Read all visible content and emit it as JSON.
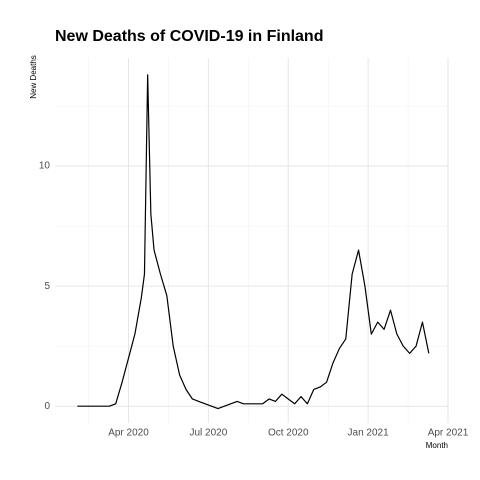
{
  "chart_data": {
    "type": "line",
    "title": "New Deaths of COVID-19 in Finland",
    "y_label": "New Deaths",
    "x_label": "Month",
    "xlim": [
      2020.02,
      2021.25
    ],
    "ylim": [
      -0.7,
      14.5
    ],
    "xticks": [
      {
        "value": 2020.25,
        "label": "Apr 2020"
      },
      {
        "value": 2020.5,
        "label": "Jul 2020"
      },
      {
        "value": 2020.75,
        "label": "Oct 2020"
      },
      {
        "value": 2021,
        "label": "Jan 2021"
      },
      {
        "value": 2021.25,
        "label": "Apr 2021"
      }
    ],
    "yticks": [
      0,
      5,
      10
    ],
    "x_minor_grid": [
      2020.125,
      2020.375,
      2020.625,
      2020.875,
      2021.125
    ],
    "y_minor_grid": [
      2.5,
      7.5,
      12.5
    ],
    "grid": true,
    "series": [
      {
        "name": "New Deaths",
        "color": "#000000",
        "x": [
          2020.09,
          2020.11,
          2020.13,
          2020.15,
          2020.17,
          2020.19,
          2020.21,
          2020.23,
          2020.25,
          2020.27,
          2020.29,
          2020.3,
          2020.31,
          2020.32,
          2020.33,
          2020.35,
          2020.37,
          2020.39,
          2020.41,
          2020.43,
          2020.45,
          2020.47,
          2020.49,
          2020.51,
          2020.53,
          2020.55,
          2020.57,
          2020.59,
          2020.61,
          2020.63,
          2020.65,
          2020.67,
          2020.69,
          2020.71,
          2020.73,
          2020.75,
          2020.77,
          2020.79,
          2020.81,
          2020.83,
          2020.85,
          2020.87,
          2020.89,
          2020.91,
          2020.93,
          2020.95,
          2020.97,
          2020.99,
          2021.01,
          2021.03,
          2021.05,
          2021.07,
          2021.09,
          2021.11,
          2021.13,
          2021.15,
          2021.17,
          2021.19
        ],
        "values": [
          0,
          0,
          0,
          0,
          0,
          0,
          0.1,
          1.0,
          2.0,
          3.0,
          4.5,
          5.5,
          13.8,
          8.0,
          6.5,
          5.5,
          4.6,
          2.5,
          1.3,
          0.7,
          0.3,
          0.2,
          0.1,
          0,
          -0.1,
          0,
          0.1,
          0.2,
          0.1,
          0.1,
          0.1,
          0.1,
          0.3,
          0.2,
          0.5,
          0.3,
          0.1,
          0.4,
          0.1,
          0.7,
          0.8,
          1.0,
          1.8,
          2.4,
          2.8,
          5.5,
          6.5,
          5.0,
          3.0,
          3.5,
          3.2,
          4.0,
          3.0,
          2.5,
          2.2,
          2.5,
          3.5,
          2.2
        ]
      }
    ]
  }
}
